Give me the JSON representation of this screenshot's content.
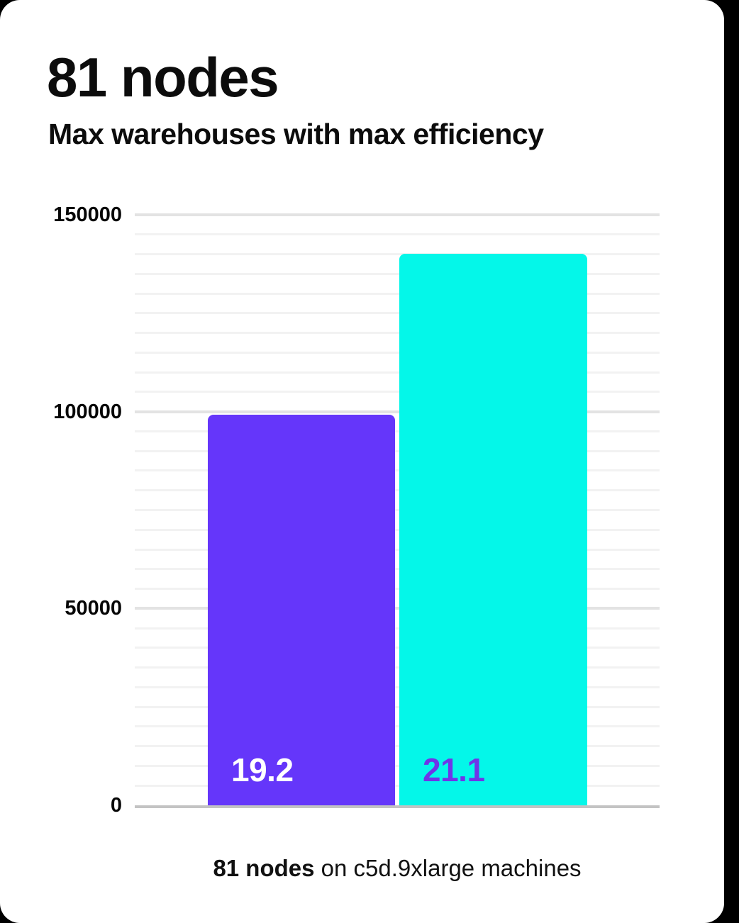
{
  "header": {
    "title": "81 nodes",
    "subtitle": "Max warehouses with max efficiency"
  },
  "caption": {
    "bold": "81 nodes",
    "rest": " on c5d.9xlarge machines"
  },
  "colors": {
    "card_background": "#ffffff",
    "page_background": "#000000",
    "bar_purple": "#6536FA",
    "bar_cyan": "#04F7E9",
    "bar_label_on_purple": "#FFFFFF",
    "bar_label_on_cyan": "#6F35E8",
    "grid_minor": "#f2f2f2",
    "grid_major": "#e3e3e3",
    "axis_line": "#c3c3c3",
    "text": "#0c0c0c"
  },
  "chart_data": {
    "type": "bar",
    "title": "81 nodes",
    "subtitle": "Max warehouses with max efficiency",
    "caption": "81 nodes on c5d.9xlarge machines",
    "ylabel": "",
    "xlabel": "",
    "ylim": [
      0,
      150000
    ],
    "yticks": [
      150000,
      100000,
      50000,
      0
    ],
    "ytick_labels": [
      "150000",
      "100000",
      "50000",
      "0"
    ],
    "minor_gridline_step": 5000,
    "major_gridline_step": 50000,
    "grid": true,
    "legend": false,
    "bars": [
      {
        "label": "19.2",
        "value": 99300,
        "color": "#6536FA",
        "label_color": "#FFFFFF"
      },
      {
        "label": "21.1",
        "value": 140100,
        "color": "#04F7E9",
        "label_color": "#6F35E8"
      }
    ]
  }
}
